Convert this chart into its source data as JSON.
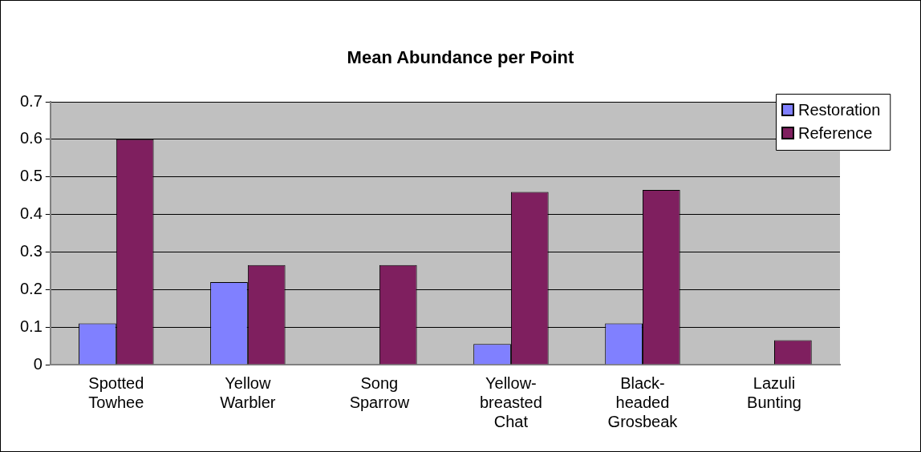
{
  "chart_data": {
    "type": "bar",
    "title": "Mean Abundance per Point",
    "categories": [
      "Spotted Towhee",
      "Yellow Warbler",
      "Song Sparrow",
      "Yellow-breasted Chat",
      "Black-headed Grosbeak",
      "Lazuli Bunting"
    ],
    "series": [
      {
        "name": "Restoration",
        "color": "#8080ff",
        "values": [
          0.11,
          0.22,
          0,
          0.055,
          0.11,
          0
        ]
      },
      {
        "name": "Reference",
        "color": "#7f1f5f",
        "values": [
          0.6,
          0.265,
          0.265,
          0.46,
          0.465,
          0.065
        ]
      }
    ],
    "ylim": [
      0,
      0.7
    ],
    "yticks": [
      0,
      0.1,
      0.2,
      0.3,
      0.4,
      0.5,
      0.6,
      0.7
    ],
    "grid": "y",
    "legend": "top right"
  }
}
